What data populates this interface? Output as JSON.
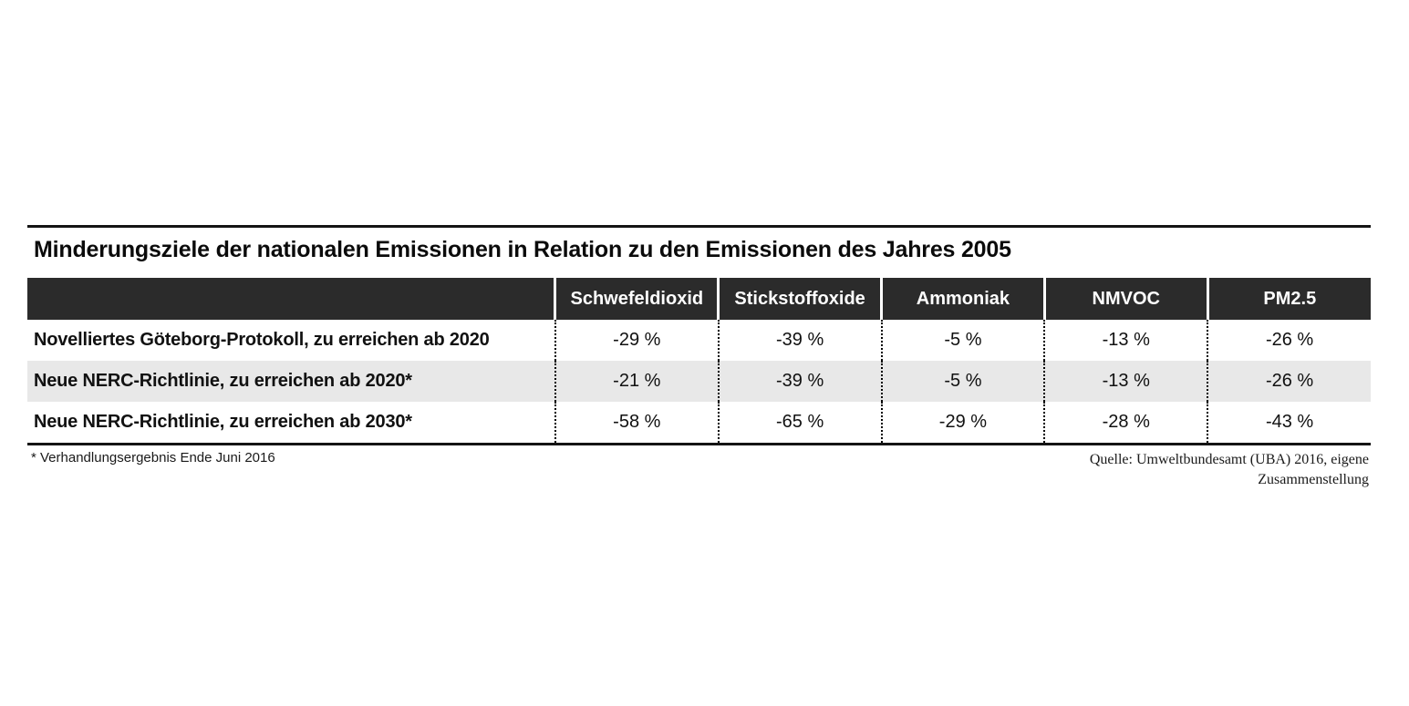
{
  "title": "Minderungsziele der nationalen Emissionen in Relation zu den Emissionen des Jahres 2005",
  "table": {
    "columns": [
      "",
      "Schwefeldioxid",
      "Stickstoffoxide",
      "Ammoniak",
      "NMVOC",
      "PM2.5"
    ],
    "rows": [
      {
        "label": "Novelliertes Göteborg-Protokoll, zu erreichen ab 2020",
        "values": [
          "-29 %",
          "-39 %",
          "-5 %",
          "-13 %",
          "-26 %"
        ]
      },
      {
        "label": "Neue NERC-Richtlinie, zu erreichen ab 2020*",
        "values": [
          "-21 %",
          "-39 %",
          "-5 %",
          "-13 %",
          "-26 %"
        ]
      },
      {
        "label": "Neue NERC-Richtlinie, zu erreichen ab 2030*",
        "values": [
          "-58 %",
          "-65 %",
          "-29 %",
          "-28 %",
          "-43 %"
        ]
      }
    ]
  },
  "footnote": "* Verhandlungsergebnis Ende Juni 2016",
  "source": {
    "line1": "Quelle: Umweltbundesamt (UBA) 2016, eigene",
    "line2": "Zusammenstellung"
  },
  "colors": {
    "header_bg": "#2b2b2b",
    "alt_row_bg": "#e8e8e8",
    "rule": "#141414"
  },
  "chart_data": {
    "type": "table",
    "title": "Minderungsziele der nationalen Emissionen in Relation zu den Emissionen des Jahres 2005",
    "unit": "%",
    "baseline_year": 2005,
    "columns": [
      "Schwefeldioxid",
      "Stickstoffoxide",
      "Ammoniak",
      "NMVOC",
      "PM2.5"
    ],
    "rows": [
      {
        "label": "Novelliertes Göteborg-Protokoll, zu erreichen ab 2020",
        "values_percent": [
          -29,
          -39,
          -5,
          -13,
          -26
        ]
      },
      {
        "label": "Neue NERC-Richtlinie, zu erreichen ab 2020*",
        "values_percent": [
          -21,
          -39,
          -5,
          -13,
          -26
        ]
      },
      {
        "label": "Neue NERC-Richtlinie, zu erreichen ab 2030*",
        "values_percent": [
          -58,
          -65,
          -29,
          -28,
          -43
        ]
      }
    ],
    "footnote": "* Verhandlungsergebnis Ende Juni 2016",
    "source": "Quelle: Umweltbundesamt (UBA) 2016, eigene Zusammenstellung"
  }
}
